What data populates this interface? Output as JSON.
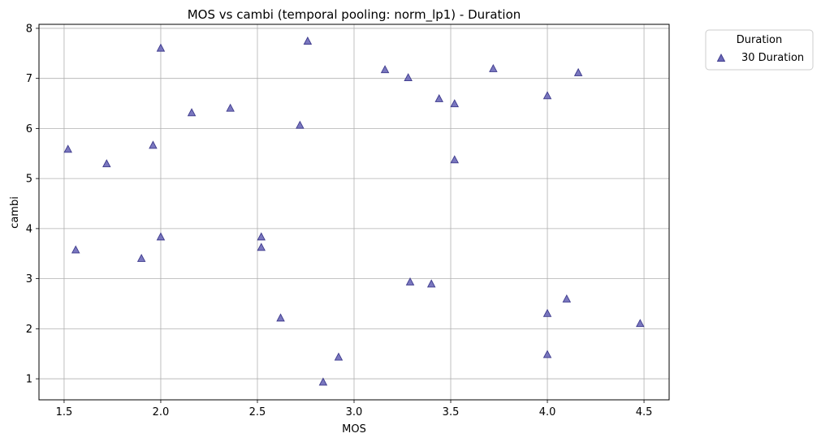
{
  "chart_data": {
    "type": "scatter",
    "title": "MOS vs cambi (temporal pooling: norm_lp1) - Duration",
    "xlabel": "MOS",
    "ylabel": "cambi",
    "xlim": [
      1.37,
      4.63
    ],
    "ylim": [
      0.58,
      8.08
    ],
    "xticks": [
      1.5,
      2.0,
      2.5,
      3.0,
      3.5,
      4.0,
      4.5
    ],
    "xtick_labels": [
      "1.5",
      "2.0",
      "2.5",
      "3.0",
      "3.5",
      "4.0",
      "4.5"
    ],
    "yticks": [
      1,
      2,
      3,
      4,
      5,
      6,
      7,
      8
    ],
    "ytick_labels": [
      "1",
      "2",
      "3",
      "4",
      "5",
      "6",
      "7",
      "8"
    ],
    "grid": true,
    "legend": {
      "title": "Duration",
      "placement": "outside-top-right"
    },
    "series": [
      {
        "name": "30 Duration",
        "marker": "triangle",
        "color": "#6b68b8",
        "edge_color": "#3d3a8c",
        "x": [
          1.52,
          1.56,
          1.72,
          1.9,
          1.96,
          2.0,
          2.0,
          2.16,
          2.36,
          2.52,
          2.52,
          2.62,
          2.72,
          2.76,
          2.84,
          2.92,
          3.16,
          3.28,
          3.29,
          3.4,
          3.44,
          3.52,
          3.52,
          3.72,
          4.0,
          4.0,
          4.0,
          4.1,
          4.16,
          4.48
        ],
        "y": [
          5.58,
          3.57,
          5.29,
          3.4,
          5.66,
          7.6,
          3.83,
          6.31,
          6.4,
          3.83,
          3.62,
          2.21,
          6.06,
          7.74,
          0.93,
          1.43,
          7.17,
          7.01,
          2.93,
          2.89,
          6.59,
          6.49,
          5.37,
          7.19,
          6.65,
          2.3,
          1.48,
          2.59,
          7.11,
          2.1
        ]
      }
    ]
  }
}
